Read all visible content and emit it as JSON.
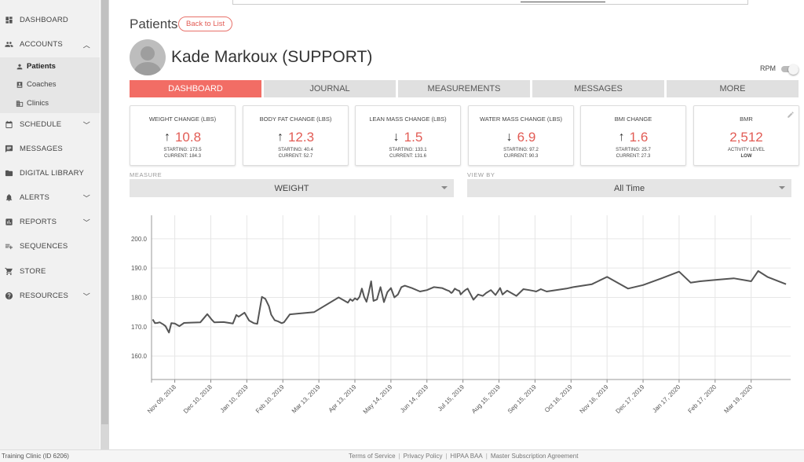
{
  "sidebar": {
    "items": [
      {
        "label": "DASHBOARD",
        "icon": "dashboard-icon"
      },
      {
        "label": "ACCOUNTS",
        "icon": "people-icon",
        "expanded": true
      },
      {
        "label": "SCHEDULE",
        "icon": "calendar-icon"
      },
      {
        "label": "MESSAGES",
        "icon": "message-icon"
      },
      {
        "label": "DIGITAL LIBRARY",
        "icon": "folder-icon"
      },
      {
        "label": "ALERTS",
        "icon": "bell-icon"
      },
      {
        "label": "REPORTS",
        "icon": "report-icon"
      },
      {
        "label": "SEQUENCES",
        "icon": "playlist-add-icon"
      },
      {
        "label": "STORE",
        "icon": "cart-icon"
      },
      {
        "label": "RESOURCES",
        "icon": "help-icon"
      }
    ],
    "sub_items": [
      {
        "label": "Patients",
        "icon": "person-icon",
        "active": true
      },
      {
        "label": "Coaches",
        "icon": "badge-icon"
      },
      {
        "label": "Clinics",
        "icon": "building-icon"
      }
    ]
  },
  "header": {
    "title": "Patients",
    "back_label": "Back to List",
    "patient_name": "Kade Markoux (SUPPORT)",
    "rpm_label": "RPM"
  },
  "tabs": [
    "DASHBOARD",
    "JOURNAL",
    "MEASUREMENTS",
    "MESSAGES",
    "MORE"
  ],
  "active_tab": "DASHBOARD",
  "accent_color": "#f26d65",
  "cards": [
    {
      "title": "WEIGHT CHANGE (LBS)",
      "direction": "up",
      "value": "10.8",
      "line1": "STARTING: 173.5",
      "line2": "CURRENT: 184.3"
    },
    {
      "title": "BODY FAT CHANGE (LBS)",
      "direction": "up",
      "value": "12.3",
      "line1": "STARTING: 40.4",
      "line2": "CURRENT: 52.7"
    },
    {
      "title": "LEAN MASS CHANGE (LBS)",
      "direction": "down",
      "value": "1.5",
      "line1": "STARTING: 133.1",
      "line2": "CURRENT: 131.6"
    },
    {
      "title": "WATER MASS CHANGE (LBS)",
      "direction": "down",
      "value": "6.9",
      "line1": "STARTING: 97.2",
      "line2": "CURRENT: 90.3"
    },
    {
      "title": "BMI CHANGE",
      "direction": "up",
      "value": "1.6",
      "line1": "STARTING: 25.7",
      "line2": "CURRENT: 27.3"
    },
    {
      "title": "BMR",
      "direction": "",
      "value": "2,512",
      "line1": "ACTIVITY LEVEL",
      "line2": "LOW"
    }
  ],
  "measure": {
    "label": "MEASURE",
    "value": "WEIGHT"
  },
  "view_by": {
    "label": "VIEW BY",
    "value": "All Time"
  },
  "chart_data": {
    "type": "line",
    "title": "",
    "xlabel": "",
    "ylabel": "",
    "ylim": [
      152,
      208
    ],
    "yticks": [
      "160.0",
      "170.0",
      "180.0",
      "190.0",
      "200.0"
    ],
    "ytick_values": [
      160,
      170,
      180,
      190,
      200
    ],
    "xticks": [
      "Nov 09, 2018",
      "Dec 10, 2018",
      "Jan 10, 2019",
      "Feb 10, 2019",
      "Mar 13, 2019",
      "Apr 13, 2019",
      "May 14, 2019",
      "Jun 14, 2019",
      "Jul 15, 2019",
      "Aug 15, 2019",
      "Sep 15, 2019",
      "Oct 16, 2019",
      "Nov 16, 2019",
      "Dec 17, 2019",
      "Jan 17, 2020",
      "Feb 17, 2020",
      "Mar 19, 2020"
    ],
    "grid": true,
    "color": "#555555",
    "series": [
      {
        "x": [
          "2018-10-21",
          "2018-10-23",
          "2018-10-25",
          "2018-10-27",
          "2018-10-30",
          "2018-11-01",
          "2018-11-04",
          "2018-11-06",
          "2018-11-09",
          "2018-11-13",
          "2018-11-17",
          "2018-11-23",
          "2018-12-01",
          "2018-12-07",
          "2018-12-11",
          "2018-12-13",
          "2018-12-21",
          "2018-12-29",
          "2019-01-01",
          "2019-01-03",
          "2019-01-08",
          "2019-01-12",
          "2019-01-16",
          "2019-01-19",
          "2019-01-23",
          "2019-01-26",
          "2019-01-29",
          "2019-01-31",
          "2019-02-03",
          "2019-02-06",
          "2019-02-09",
          "2019-02-11",
          "2019-02-16",
          "2019-03-09",
          "2019-03-30",
          "2019-04-07",
          "2019-04-09",
          "2019-04-11",
          "2019-04-13",
          "2019-04-15",
          "2019-04-17",
          "2019-04-19",
          "2019-04-21",
          "2019-04-23",
          "2019-04-25",
          "2019-04-27",
          "2019-04-29",
          "2019-05-02",
          "2019-05-05",
          "2019-05-08",
          "2019-05-11",
          "2019-05-14",
          "2019-05-17",
          "2019-05-20",
          "2019-05-23",
          "2019-05-26",
          "2019-06-01",
          "2019-06-08",
          "2019-06-14",
          "2019-06-20",
          "2019-06-27",
          "2019-07-01",
          "2019-07-03",
          "2019-07-05",
          "2019-07-06",
          "2019-07-08",
          "2019-07-10",
          "2019-07-12",
          "2019-07-13",
          "2019-07-15",
          "2019-07-17",
          "2019-07-19",
          "2019-07-21",
          "2019-07-24",
          "2019-07-28",
          "2019-08-01",
          "2019-08-04",
          "2019-08-08",
          "2019-08-12",
          "2019-08-16",
          "2019-08-18",
          "2019-08-22",
          "2019-08-30",
          "2019-09-05",
          "2019-09-10",
          "2019-09-14",
          "2019-09-16",
          "2019-09-20",
          "2019-09-25",
          "2019-10-03",
          "2019-10-12",
          "2019-10-18",
          "2019-11-03",
          "2019-11-16",
          "2019-12-04",
          "2019-12-17",
          "2020-01-02",
          "2020-01-17",
          "2020-01-27",
          "2020-02-04",
          "2020-02-18",
          "2020-03-04",
          "2020-03-19",
          "2020-03-25",
          "2020-04-02",
          "2020-04-18"
        ],
        "y": [
          172.5,
          171.2,
          171.3,
          171.5,
          170.8,
          170.2,
          168.0,
          171.2,
          171.1,
          170.2,
          171.3,
          171.4,
          171.5,
          174.3,
          172.3,
          171.5,
          171.6,
          171.1,
          174.0,
          173.4,
          174.8,
          172.1,
          171.2,
          171.0,
          180.2,
          179.5,
          177.0,
          174.1,
          172.2,
          171.8,
          171.2,
          171.5,
          174.2,
          175.0,
          180.0,
          178.2,
          179.4,
          178.8,
          179.7,
          179.2,
          180.2,
          183.0,
          180.2,
          178.5,
          181.8,
          185.5,
          178.8,
          179.3,
          183.5,
          178.4,
          181.8,
          183.2,
          180.0,
          181.0,
          183.5,
          184.0,
          183.2,
          182.0,
          182.5,
          183.5,
          183.2,
          182.5,
          182.2,
          181.5,
          181.8,
          183.0,
          182.5,
          182.2,
          181.0,
          181.8,
          182.5,
          183.0,
          181.5,
          179.2,
          181.0,
          180.5,
          181.5,
          182.5,
          180.8,
          183.2,
          181.0,
          182.3,
          180.5,
          182.8,
          182.5,
          182.2,
          182.0,
          182.8,
          182.0,
          182.5,
          183.0,
          183.5,
          184.5,
          187.0,
          183.0,
          184.2,
          186.5,
          188.8,
          185.0,
          185.5,
          186.0,
          186.5,
          185.5,
          189.0,
          187.0,
          184.5
        ]
      }
    ]
  }
}
